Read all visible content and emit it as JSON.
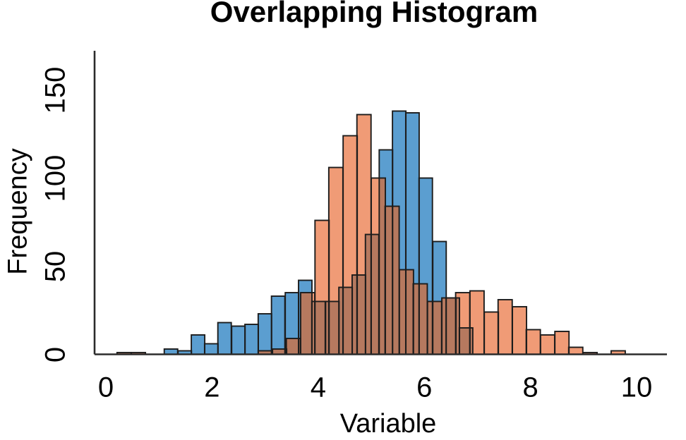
{
  "chart_data": {
    "type": "histogram",
    "title": "Overlapping Histogram",
    "xlabel": "Variable",
    "ylabel": "Frequency",
    "x_ticks": [
      0,
      2,
      4,
      6,
      8,
      10
    ],
    "y_ticks": [
      0,
      50,
      100,
      150
    ],
    "xlim": [
      -0.213,
      10.505
    ],
    "ylim": [
      0,
      172.2
    ],
    "grid": false,
    "legend": "none",
    "axis_color": "#2b2b2b",
    "text_color": "#000000",
    "bar_stroke": "#1c1c1c",
    "overlap_color": "#b6795f",
    "series": [
      {
        "name": "orange-histogram",
        "color": "#f09b76",
        "bin_width": 0.266,
        "bins": [
          [
            0.21,
            1
          ],
          [
            0.48,
            1
          ],
          [
            2.87,
            2
          ],
          [
            3.14,
            3
          ],
          [
            3.4,
            9
          ],
          [
            3.67,
            35
          ],
          [
            3.94,
            76
          ],
          [
            4.2,
            106
          ],
          [
            4.47,
            124
          ],
          [
            4.73,
            136
          ],
          [
            5.0,
            100
          ],
          [
            5.26,
            84
          ],
          [
            5.53,
            48
          ],
          [
            5.79,
            40
          ],
          [
            6.06,
            30
          ],
          [
            6.33,
            32
          ],
          [
            6.59,
            35
          ],
          [
            6.86,
            36
          ],
          [
            7.13,
            24
          ],
          [
            7.39,
            31
          ],
          [
            7.66,
            27
          ],
          [
            7.92,
            14
          ],
          [
            8.19,
            11
          ],
          [
            8.46,
            13
          ],
          [
            8.72,
            4
          ],
          [
            8.99,
            1
          ],
          [
            9.52,
            2
          ]
        ]
      },
      {
        "name": "blue-histogram",
        "color": "#5b9ed0",
        "bin_width": 0.2527,
        "bins": [
          [
            1.1,
            3
          ],
          [
            1.36,
            2
          ],
          [
            1.61,
            11
          ],
          [
            1.86,
            6
          ],
          [
            2.11,
            18
          ],
          [
            2.37,
            16
          ],
          [
            2.62,
            17
          ],
          [
            2.87,
            23
          ],
          [
            3.12,
            33
          ],
          [
            3.38,
            35
          ],
          [
            3.63,
            42
          ],
          [
            3.88,
            30
          ],
          [
            4.14,
            30
          ],
          [
            4.39,
            38
          ],
          [
            4.64,
            45
          ],
          [
            4.89,
            68
          ],
          [
            5.15,
            116
          ],
          [
            5.4,
            138
          ],
          [
            5.65,
            137
          ],
          [
            5.9,
            100
          ],
          [
            6.16,
            64
          ],
          [
            6.41,
            32
          ],
          [
            6.66,
            15
          ]
        ]
      }
    ]
  }
}
